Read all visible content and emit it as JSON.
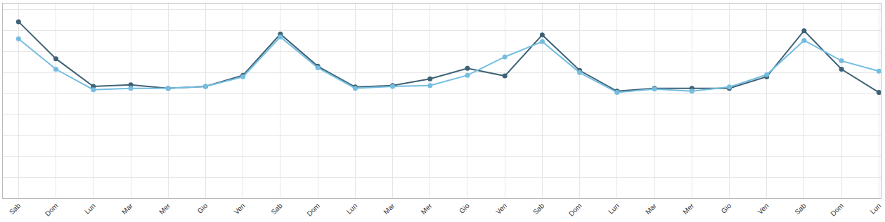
{
  "chart_data": {
    "type": "line",
    "categories": [
      "Sab",
      "Dom",
      "Lun",
      "Mar",
      "Mer",
      "Gio",
      "Ven",
      "Sab",
      "Dom",
      "Lun",
      "Mar",
      "Mer",
      "Gio",
      "Ven",
      "Sab",
      "Dom",
      "Lun",
      "Mar",
      "Mer",
      "Gio",
      "Ven",
      "Sab",
      "Dom",
      "Lun"
    ],
    "series": [
      {
        "color": "#3e6275",
        "marker": "circle",
        "line_style": "solid",
        "values": [
          8.43,
          6.66,
          5.34,
          5.41,
          5.25,
          5.34,
          5.87,
          7.84,
          6.3,
          5.31,
          5.38,
          5.7,
          6.2,
          5.84,
          7.8,
          6.1,
          5.11,
          5.25,
          5.25,
          5.25,
          5.8,
          8.0,
          6.16,
          5.05
        ]
      },
      {
        "color": "#74bde0",
        "marker": "circle",
        "line_style": "solid",
        "values": [
          7.61,
          6.16,
          5.18,
          5.25,
          5.25,
          5.34,
          5.8,
          7.7,
          6.23,
          5.25,
          5.34,
          5.38,
          5.87,
          6.75,
          7.48,
          6.0,
          5.05,
          5.21,
          5.11,
          5.31,
          5.9,
          7.54,
          6.56,
          6.07
        ]
      }
    ],
    "ylim": [
      0,
      9.3
    ],
    "yticks": [
      0,
      1,
      2,
      3,
      4,
      5,
      6,
      7,
      8,
      9
    ],
    "grid": true,
    "tick_labels": "x"
  }
}
